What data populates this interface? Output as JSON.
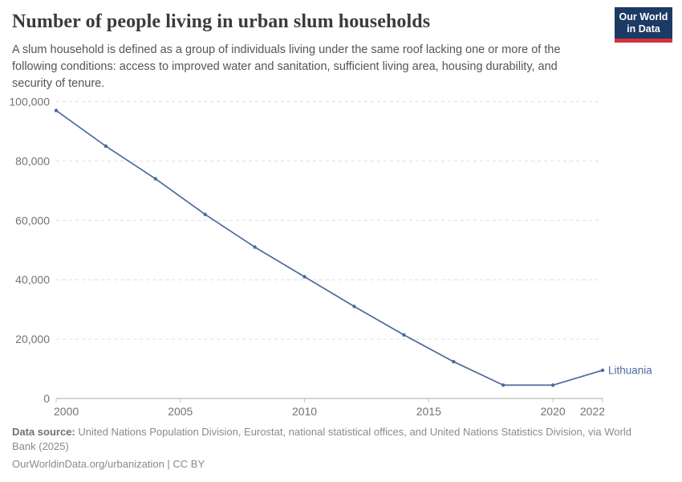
{
  "header": {
    "title": "Number of people living in urban slum households",
    "subtitle": "A slum household is defined as a group of individuals living under the same roof lacking one or more of the following conditions: access to improved water and sanitation, sufficient living area, housing durability, and security of tenure."
  },
  "logo": {
    "line1": "Our World",
    "line2": "in Data",
    "bg_color": "#1b3a64",
    "accent_color": "#d0333b"
  },
  "chart_data": {
    "type": "line",
    "title": "Number of people living in urban slum households",
    "xlabel": "",
    "ylabel": "",
    "x": [
      2000,
      2002,
      2004,
      2006,
      2008,
      2010,
      2012,
      2014,
      2016,
      2018,
      2020,
      2022
    ],
    "series": [
      {
        "name": "Lithuania",
        "color": "#4c6a9c",
        "values": [
          97000,
          85000,
          74000,
          62000,
          51000,
          41000,
          31000,
          21400,
          12400,
          4500,
          4500,
          9500
        ]
      }
    ],
    "xlim": [
      2000,
      2022
    ],
    "ylim": [
      0,
      100000
    ],
    "x_ticks": [
      2000,
      2005,
      2010,
      2015,
      2020,
      2022
    ],
    "y_ticks": [
      0,
      20000,
      40000,
      60000,
      80000,
      100000
    ],
    "grid": "horizontal-dashed",
    "legend_position": "end-of-line-label",
    "end_label": "Lithuania",
    "style": {
      "grid_color": "#dddddd",
      "axis_color": "#a8a8a8",
      "tick_color": "#c4c4c4",
      "tick_label_color": "#737373"
    }
  },
  "footer": {
    "datasource_label": "Data source:",
    "datasource_text": " United Nations Population Division, Eurostat, national statistical offices, and United Nations Statistics Division, via World Bank (2025)",
    "citation_link": "OurWorldinData.org/urbanization",
    "citation_separator": " | ",
    "citation_license": "CC BY"
  }
}
